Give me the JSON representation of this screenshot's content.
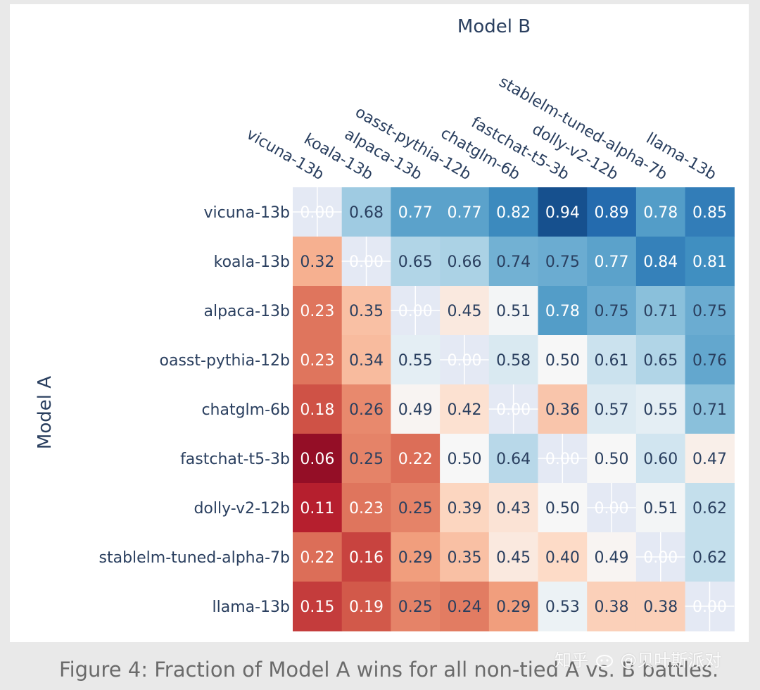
{
  "chart_data": {
    "type": "heatmap",
    "title": "",
    "xlabel": "Model B",
    "ylabel": "Model A",
    "x_categories": [
      "vicuna-13b",
      "koala-13b",
      "alpaca-13b",
      "oasst-pythia-12b",
      "chatglm-6b",
      "fastchat-t5-3b",
      "dolly-v2-12b",
      "stablelm-tuned-alpha-7b",
      "llama-13b"
    ],
    "y_categories": [
      "vicuna-13b",
      "koala-13b",
      "alpaca-13b",
      "oasst-pythia-12b",
      "chatglm-6b",
      "fastchat-t5-3b",
      "dolly-v2-12b",
      "stablelm-tuned-alpha-7b",
      "llama-13b"
    ],
    "values": [
      [
        0.0,
        0.68,
        0.77,
        0.77,
        0.82,
        0.94,
        0.89,
        0.78,
        0.85
      ],
      [
        0.32,
        0.0,
        0.65,
        0.66,
        0.74,
        0.75,
        0.77,
        0.84,
        0.81
      ],
      [
        0.23,
        0.35,
        0.0,
        0.45,
        0.51,
        0.78,
        0.75,
        0.71,
        0.75
      ],
      [
        0.23,
        0.34,
        0.55,
        0.0,
        0.58,
        0.5,
        0.61,
        0.65,
        0.76
      ],
      [
        0.18,
        0.26,
        0.49,
        0.42,
        0.0,
        0.36,
        0.57,
        0.55,
        0.71
      ],
      [
        0.06,
        0.25,
        0.22,
        0.5,
        0.64,
        0.0,
        0.5,
        0.6,
        0.47
      ],
      [
        0.11,
        0.23,
        0.25,
        0.39,
        0.43,
        0.5,
        0.0,
        0.51,
        0.62
      ],
      [
        0.22,
        0.16,
        0.29,
        0.35,
        0.45,
        0.4,
        0.49,
        0.0,
        0.62
      ],
      [
        0.15,
        0.19,
        0.25,
        0.24,
        0.29,
        0.53,
        0.38,
        0.38,
        0.0
      ]
    ],
    "colorscale": "RdBu",
    "zlim": [
      0,
      1
    ],
    "diagonal_color": "#e4e9f4",
    "grid": true,
    "legend": "none"
  },
  "caption": "Figure 4: Fraction of Model A wins for all non-tied A vs. B battles.",
  "watermark": {
    "text_left": "知乎",
    "text_right": "@贝叶斯派对"
  }
}
